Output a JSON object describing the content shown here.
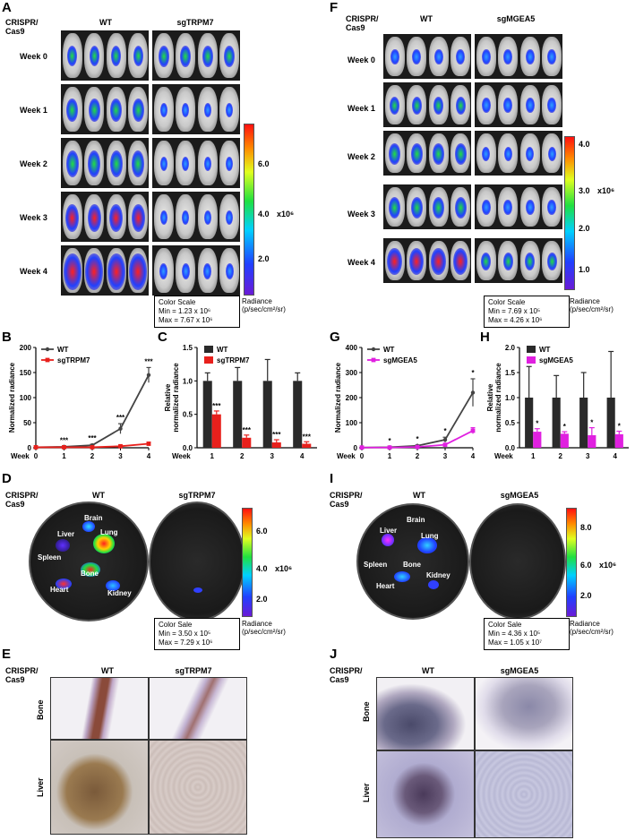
{
  "panels": [
    "A",
    "B",
    "C",
    "D",
    "E",
    "F",
    "G",
    "H",
    "I",
    "J"
  ],
  "left": {
    "crispr_label": "CRISPR/\nCas9",
    "wt": "WT",
    "ko": "sgTRPM7",
    "weeks": [
      "Week 0",
      "Week 1",
      "Week 2",
      "Week 3",
      "Week 4"
    ],
    "colorbar_ticks": [
      "6.0",
      "4.0",
      "2.0"
    ],
    "colorbar_unit": "x10⁶",
    "colorscale_title": "Color Scale",
    "colorscale_min": "Min = 1.23 x 10⁶",
    "colorscale_max": "Max = 7.67 x 10⁶",
    "radiance_unit": "Radiance\n(p/sec/cm²/sr)",
    "organ_colorbar_ticks": [
      "6.0",
      "4.0",
      "2.0"
    ],
    "organ_colorscale_title": "Color Sale",
    "organ_colorscale_min": "Min = 3.50 x 10⁵",
    "organ_colorscale_max": "Max = 7.29 x 10⁶",
    "organs": [
      "Brain",
      "Liver",
      "Lung",
      "Spleen",
      "Bone",
      "Heart",
      "Kidney"
    ],
    "tissue_rows": [
      "Bone",
      "Liver"
    ]
  },
  "right": {
    "crispr_label": "CRISPR/\nCas9",
    "wt": "WT",
    "ko": "sgMGEA5",
    "weeks": [
      "Week 0",
      "Week 1",
      "Week 2",
      "Week 3",
      "Week 4"
    ],
    "colorbar_ticks": [
      "4.0",
      "3.0",
      "2.0",
      "1.0"
    ],
    "colorbar_unit": "x10⁶",
    "colorscale_title": "Color Scale",
    "colorscale_min": "Min = 7.69 x 10⁵",
    "colorscale_max": "Max = 4.26 x 10⁶",
    "radiance_unit": "Radiance\n(p/sec/cm²/sr)",
    "organ_colorbar_ticks": [
      "8.0",
      "6.0",
      "2.0"
    ],
    "organ_colorscale_title": "Color Sale",
    "organ_colorscale_min": "Min = 4.36 x 10⁵",
    "organ_colorscale_max": "Max = 1.05 x 10⁷",
    "organs": [
      "Brain",
      "Liver",
      "Lung",
      "Spleen",
      "Bone",
      "Heart",
      "Kidney"
    ],
    "tissue_rows": [
      "Bone",
      "Liver"
    ]
  },
  "chart_data": [
    {
      "id": "B",
      "type": "line",
      "ylabel": "Normalized radiance",
      "xlabel": "Week",
      "x": [
        0,
        1,
        2,
        3,
        4
      ],
      "ylim": [
        0,
        200
      ],
      "yticks": [
        0,
        50,
        100,
        150,
        200
      ],
      "series": [
        {
          "name": "WT",
          "color": "#444444",
          "values": [
            1,
            2,
            5,
            38,
            145
          ],
          "errors": [
            0,
            1,
            2,
            10,
            15
          ]
        },
        {
          "name": "sgTRPM7",
          "color": "#e8201c",
          "values": [
            1,
            1,
            1,
            3,
            8
          ],
          "errors": [
            0,
            0,
            0,
            1,
            3
          ]
        }
      ],
      "annotations": [
        "***",
        "***",
        "***",
        "***"
      ]
    },
    {
      "id": "C",
      "type": "bar",
      "ylabel": "Relative\nnormalized radiance",
      "xlabel": "Week",
      "categories": [
        "1",
        "2",
        "3",
        "4"
      ],
      "ylim": [
        0,
        1.5
      ],
      "yticks": [
        "0.0",
        "0.5",
        "1.0",
        "1.5"
      ],
      "series": [
        {
          "name": "WT",
          "color": "#2a2a2a",
          "values": [
            1.0,
            1.0,
            1.0,
            1.0
          ],
          "errors": [
            0.12,
            0.2,
            0.32,
            0.12
          ]
        },
        {
          "name": "sgTRPM7",
          "color": "#e8201c",
          "values": [
            0.5,
            0.15,
            0.08,
            0.06
          ],
          "errors": [
            0.05,
            0.04,
            0.04,
            0.03
          ]
        }
      ],
      "annotations": [
        "***",
        "***",
        "***",
        "***"
      ]
    },
    {
      "id": "G",
      "type": "line",
      "ylabel": "Normalized radiance",
      "xlabel": "Week",
      "x": [
        0,
        1,
        2,
        3,
        4
      ],
      "ylim": [
        0,
        400
      ],
      "yticks": [
        0,
        100,
        200,
        300,
        400
      ],
      "series": [
        {
          "name": "WT",
          "color": "#444444",
          "values": [
            1,
            2,
            8,
            32,
            220
          ],
          "errors": [
            0,
            1,
            3,
            10,
            55
          ]
        },
        {
          "name": "sgMGEA5",
          "color": "#e020e0",
          "values": [
            1,
            1,
            3,
            12,
            68
          ],
          "errors": [
            0,
            0,
            1,
            4,
            12
          ]
        }
      ],
      "annotations": [
        "*",
        "*",
        "*",
        "*"
      ]
    },
    {
      "id": "H",
      "type": "bar",
      "ylabel": "Relative\nnormalized radiance",
      "xlabel": "Week",
      "categories": [
        "1",
        "2",
        "3",
        "4"
      ],
      "ylim": [
        0,
        2.0
      ],
      "yticks": [
        "0.0",
        "0.5",
        "1.0",
        "1.5",
        "2.0"
      ],
      "series": [
        {
          "name": "WT",
          "color": "#2a2a2a",
          "values": [
            1.0,
            1.0,
            1.0,
            1.0
          ],
          "errors": [
            0.62,
            0.44,
            0.5,
            0.92
          ]
        },
        {
          "name": "sgMGEA5",
          "color": "#e020e0",
          "values": [
            0.32,
            0.28,
            0.25,
            0.27
          ],
          "errors": [
            0.06,
            0.04,
            0.15,
            0.06
          ]
        }
      ],
      "annotations": [
        "*",
        "*",
        "*",
        "*"
      ]
    }
  ]
}
